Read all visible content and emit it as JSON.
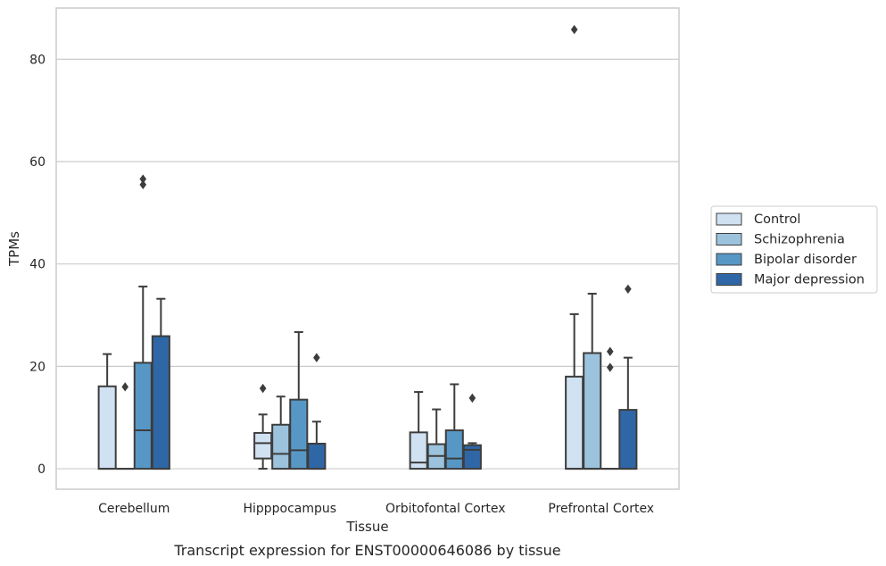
{
  "caption": "Transcript expression for ENST00000646086 by tissue",
  "colors": {
    "grid": "#cccccc",
    "frame": "#cccccc",
    "box_edge": "#3d3d3d",
    "legend_border": "#cccccc"
  },
  "chart_data": {
    "type": "box",
    "xlabel": "Tissue",
    "ylabel": "TPMs",
    "ylim": [
      -4,
      90
    ],
    "yticks": [
      0,
      20,
      40,
      60,
      80
    ],
    "ytick_labels": [
      "0",
      "20",
      "40",
      "60",
      "80"
    ],
    "grid": "horizontal",
    "legend_placement": "right, outside plot",
    "categories": [
      "Cerebellum",
      "Hipppocampus",
      "Orbitofontal Cortex",
      "Prefrontal Cortex"
    ],
    "series": [
      {
        "name": "Control",
        "color": "#d0e1f2",
        "boxes": [
          {
            "q1": 0,
            "median": 0,
            "q3": 16.1,
            "whislo": 0,
            "whishi": 22.4,
            "fliers": []
          },
          {
            "q1": 2.0,
            "median": 5.0,
            "q3": 7.0,
            "whislo": 0,
            "whishi": 10.6,
            "fliers": [
              15.7
            ]
          },
          {
            "q1": 0,
            "median": 1.2,
            "q3": 7.1,
            "whislo": 0,
            "whishi": 15.0,
            "fliers": []
          },
          {
            "q1": 0,
            "median": 0,
            "q3": 18.0,
            "whislo": 0,
            "whishi": 30.2,
            "fliers": [
              85.8
            ]
          }
        ]
      },
      {
        "name": "Schizophrenia",
        "color": "#9cc3dd",
        "boxes": [
          {
            "q1": 0,
            "median": 0,
            "q3": 0,
            "whislo": 0,
            "whishi": 0,
            "fliers": [
              16.0
            ]
          },
          {
            "q1": 0,
            "median": 2.9,
            "q3": 8.6,
            "whislo": 0,
            "whishi": 14.1,
            "fliers": []
          },
          {
            "q1": 0,
            "median": 2.5,
            "q3": 4.8,
            "whislo": 0,
            "whishi": 11.6,
            "fliers": []
          },
          {
            "q1": 0,
            "median": 0,
            "q3": 22.6,
            "whislo": 0,
            "whishi": 34.2,
            "fliers": []
          }
        ]
      },
      {
        "name": "Bipolar disorder",
        "color": "#5797c5",
        "boxes": [
          {
            "q1": 0,
            "median": 7.5,
            "q3": 20.7,
            "whislo": 0,
            "whishi": 35.6,
            "fliers": [
              55.5,
              56.6
            ]
          },
          {
            "q1": 0,
            "median": 3.6,
            "q3": 13.5,
            "whislo": 0,
            "whishi": 26.7,
            "fliers": []
          },
          {
            "q1": 0,
            "median": 2.0,
            "q3": 7.5,
            "whislo": 0,
            "whishi": 16.5,
            "fliers": []
          },
          {
            "q1": 0,
            "median": 0,
            "q3": 0,
            "whislo": 0,
            "whishi": 0,
            "fliers": [
              19.8,
              22.9
            ]
          }
        ]
      },
      {
        "name": "Major depression",
        "color": "#2f67a6",
        "boxes": [
          {
            "q1": 0,
            "median": 0,
            "q3": 25.9,
            "whislo": 0,
            "whishi": 33.2,
            "fliers": []
          },
          {
            "q1": 0,
            "median": 0,
            "q3": 4.9,
            "whislo": 0,
            "whishi": 9.2,
            "fliers": [
              21.7
            ]
          },
          {
            "q1": 0,
            "median": 3.7,
            "q3": 4.6,
            "whislo": 0,
            "whishi": 5.0,
            "fliers": [
              13.8
            ]
          },
          {
            "q1": 0,
            "median": 0,
            "q3": 11.5,
            "whislo": 0,
            "whishi": 21.7,
            "fliers": [
              35.1
            ]
          }
        ]
      }
    ]
  }
}
